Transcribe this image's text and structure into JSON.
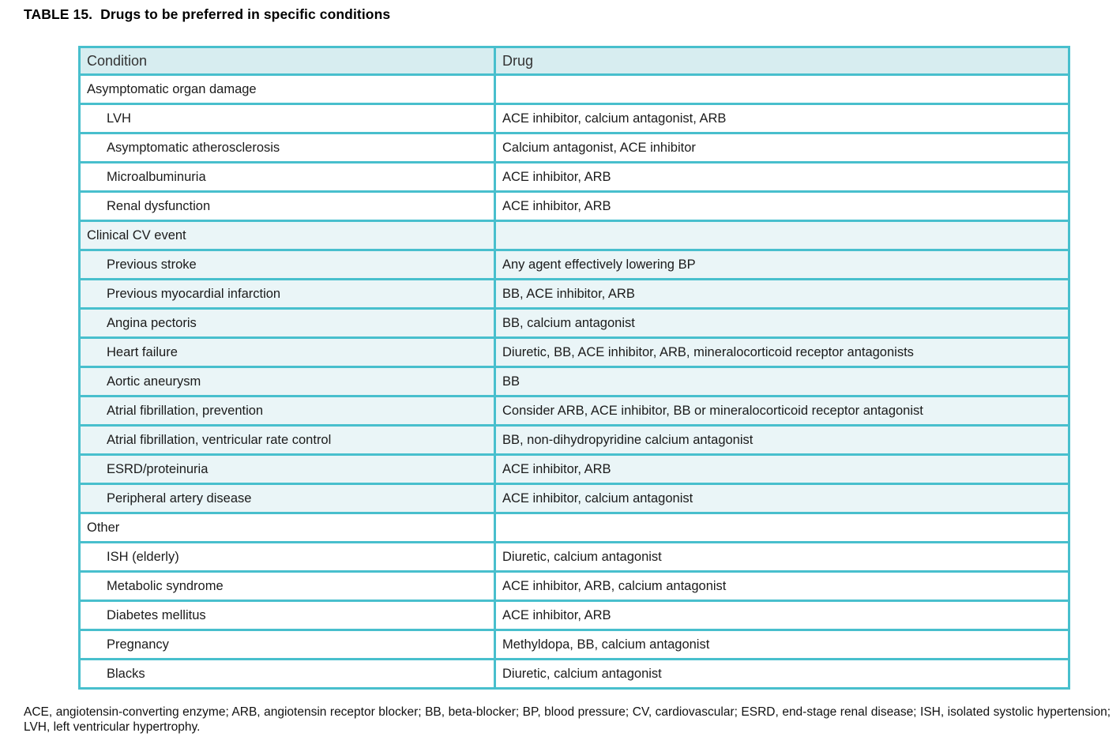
{
  "title": {
    "label": "TABLE 15.",
    "text": "Drugs to be preferred in specific conditions"
  },
  "table": {
    "columns": [
      "Condition",
      "Drug"
    ],
    "rows": [
      {
        "condition": "Asymptomatic organ damage",
        "drug": "",
        "indent": false,
        "tinted": false
      },
      {
        "condition": "LVH",
        "drug": "ACE inhibitor, calcium antagonist, ARB",
        "indent": true,
        "tinted": false
      },
      {
        "condition": "Asymptomatic atherosclerosis",
        "drug": "Calcium antagonist, ACE inhibitor",
        "indent": true,
        "tinted": false
      },
      {
        "condition": "Microalbuminuria",
        "drug": "ACE inhibitor, ARB",
        "indent": true,
        "tinted": false
      },
      {
        "condition": "Renal dysfunction",
        "drug": "ACE inhibitor, ARB",
        "indent": true,
        "tinted": false
      },
      {
        "condition": "Clinical CV event",
        "drug": "",
        "indent": false,
        "tinted": true
      },
      {
        "condition": "Previous stroke",
        "drug": "Any agent effectively lowering BP",
        "indent": true,
        "tinted": true
      },
      {
        "condition": "Previous myocardial infarction",
        "drug": "BB, ACE inhibitor, ARB",
        "indent": true,
        "tinted": true
      },
      {
        "condition": "Angina pectoris",
        "drug": "BB, calcium antagonist",
        "indent": true,
        "tinted": true
      },
      {
        "condition": "Heart failure",
        "drug": "Diuretic, BB, ACE inhibitor, ARB, mineralocorticoid receptor antagonists",
        "indent": true,
        "tinted": true
      },
      {
        "condition": "Aortic aneurysm",
        "drug": "BB",
        "indent": true,
        "tinted": true
      },
      {
        "condition": "Atrial fibrillation, prevention",
        "drug": "Consider ARB, ACE inhibitor, BB or mineralocorticoid receptor antagonist",
        "indent": true,
        "tinted": true
      },
      {
        "condition": "Atrial fibrillation, ventricular rate control",
        "drug": "BB, non-dihydropyridine calcium antagonist",
        "indent": true,
        "tinted": true
      },
      {
        "condition": "ESRD/proteinuria",
        "drug": "ACE inhibitor, ARB",
        "indent": true,
        "tinted": true
      },
      {
        "condition": "Peripheral artery disease",
        "drug": "ACE inhibitor, calcium antagonist",
        "indent": true,
        "tinted": true
      },
      {
        "condition": "Other",
        "drug": "",
        "indent": false,
        "tinted": false
      },
      {
        "condition": "ISH (elderly)",
        "drug": "Diuretic, calcium antagonist",
        "indent": true,
        "tinted": false
      },
      {
        "condition": "Metabolic syndrome",
        "drug": "ACE inhibitor, ARB, calcium antagonist",
        "indent": true,
        "tinted": false
      },
      {
        "condition": "Diabetes mellitus",
        "drug": "ACE inhibitor, ARB",
        "indent": true,
        "tinted": false
      },
      {
        "condition": "Pregnancy",
        "drug": "Methyldopa, BB, calcium antagonist",
        "indent": true,
        "tinted": false
      },
      {
        "condition": "Blacks",
        "drug": "Diuretic, calcium antagonist",
        "indent": true,
        "tinted": false
      }
    ]
  },
  "footnote": {
    "text": "ACE, angiotensin-converting enzyme; ARB, angiotensin receptor blocker; BB, beta-blocker; BP, blood pressure; CV, cardiovascular; ESRD, end-stage renal disease; ISH, isolated systolic hypertension; LVH, left ventricular hypertrophy."
  },
  "colors": {
    "border": "#48bfcd",
    "header_bg": "#d7edf0",
    "tint_bg": "#eaf5f7",
    "text": "#1b1b1b"
  }
}
